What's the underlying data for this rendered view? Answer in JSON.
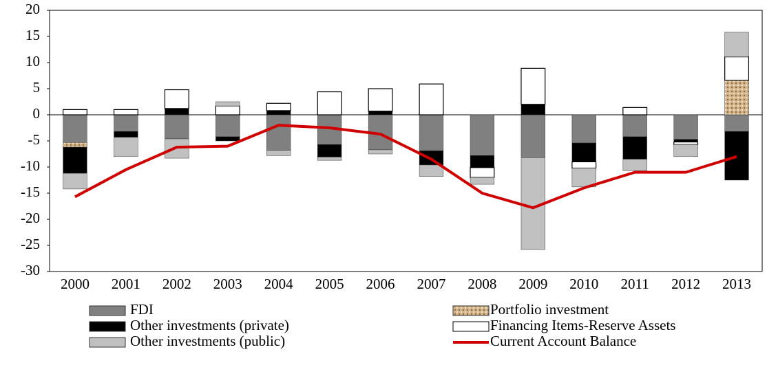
{
  "chart_data": {
    "type": "bar",
    "categories": [
      "2000",
      "2001",
      "2002",
      "2003",
      "2004",
      "2005",
      "2006",
      "2007",
      "2008",
      "2009",
      "2010",
      "2011",
      "2012",
      "2013"
    ],
    "series": [
      {
        "name": "FDI",
        "color": "#808080",
        "values": [
          -5.3,
          -3.2,
          -4.6,
          -4.2,
          -6.8,
          -5.7,
          -6.7,
          -6.9,
          -7.8,
          -8.2,
          -5.4,
          -4.2,
          -4.7,
          -3.2
        ]
      },
      {
        "name": "Portfolio investment",
        "color": "#d2b48c",
        "values": [
          -0.9,
          0,
          0,
          0,
          0,
          0,
          0,
          0,
          0,
          0,
          0,
          0,
          0,
          6.6
        ]
      },
      {
        "name": "Other investments (private)",
        "color": "#000000",
        "values": [
          -5.0,
          -1.1,
          1.2,
          -0.8,
          0.8,
          -2.4,
          0.7,
          -2.7,
          -2.3,
          2.0,
          -3.6,
          -4.3,
          -0.5,
          -9.3
        ]
      },
      {
        "name": "Financing Items-Reserve Assets",
        "color": "#ffffff",
        "values": [
          1.0,
          1.0,
          3.6,
          1.7,
          1.4,
          4.4,
          4.3,
          5.9,
          -1.9,
          6.9,
          -1.2,
          1.4,
          -0.5,
          4.5
        ]
      },
      {
        "name": "Other investments (public)",
        "color": "#c0c0c0",
        "values": [
          -3.0,
          -3.7,
          -3.7,
          0.8,
          -1.0,
          -0.6,
          -0.8,
          -2.2,
          -1.3,
          -17.6,
          -3.6,
          -2.2,
          -2.3,
          4.7
        ]
      },
      {
        "name": "Current Account Balance",
        "type": "line",
        "color": "#d00000",
        "values": [
          -15.7,
          -10.5,
          -6.2,
          -6.0,
          -2.0,
          -2.5,
          -3.7,
          -8.5,
          -15.0,
          -17.8,
          -14.0,
          -11.0,
          -11.0,
          -8.0
        ]
      }
    ],
    "ylim": [
      -30,
      20
    ],
    "yticks": [
      -30,
      -25,
      -20,
      -15,
      -10,
      -5,
      0,
      5,
      10,
      15,
      20
    ],
    "grid": false,
    "legend": "bottom"
  }
}
